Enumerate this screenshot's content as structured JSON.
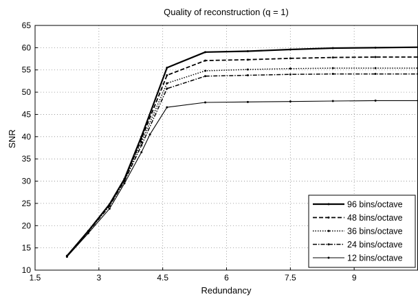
{
  "chart_data": {
    "type": "line",
    "title": "Quality of reconstruction (q = 1)",
    "xlabel": "Redundancy",
    "ylabel": "SNR",
    "xlim": [
      1.5,
      10.5
    ],
    "ylim": [
      10,
      65
    ],
    "xticks": [
      1.5,
      3,
      4.5,
      6,
      7.5,
      9
    ],
    "xtick_labels": [
      "1.5",
      "3",
      "4.5",
      "6",
      "7.5",
      "9"
    ],
    "yticks": [
      10,
      15,
      20,
      25,
      30,
      35,
      40,
      45,
      50,
      55,
      60,
      65
    ],
    "ytick_labels": [
      "10",
      "15",
      "20",
      "25",
      "30",
      "35",
      "40",
      "45",
      "50",
      "55",
      "60",
      "65"
    ],
    "grid": true,
    "legend_position": "bottom-right",
    "series": [
      {
        "name": "96 bins/octave",
        "style": "solid-bold",
        "x": [
          2.25,
          2.75,
          3.25,
          3.6,
          4.0,
          4.6,
          5.5,
          6.5,
          7.5,
          8.5,
          9.5,
          10.5
        ],
        "y": [
          13.2,
          18.8,
          24.8,
          30.5,
          40.0,
          55.5,
          59.0,
          59.2,
          59.6,
          59.9,
          60.0,
          60.1
        ]
      },
      {
        "name": "48 bins/octave",
        "style": "dashed",
        "x": [
          2.25,
          2.75,
          3.25,
          3.6,
          4.0,
          4.6,
          5.5,
          6.5,
          7.5,
          8.5,
          9.5,
          10.5
        ],
        "y": [
          13.2,
          18.8,
          24.8,
          30.4,
          39.5,
          53.8,
          57.1,
          57.3,
          57.6,
          57.8,
          57.9,
          57.9
        ]
      },
      {
        "name": "36 bins/octave",
        "style": "dotted",
        "x": [
          2.25,
          2.75,
          3.25,
          3.6,
          4.0,
          4.6,
          5.5,
          6.5,
          7.5,
          8.5,
          9.5,
          10.5
        ],
        "y": [
          13.2,
          18.7,
          24.6,
          30.2,
          38.8,
          52.0,
          54.8,
          55.1,
          55.3,
          55.4,
          55.4,
          55.4
        ]
      },
      {
        "name": "24 bins/octave",
        "style": "dashdot",
        "x": [
          2.25,
          2.75,
          3.25,
          3.6,
          4.0,
          4.6,
          5.5,
          6.5,
          7.5,
          8.5,
          9.5,
          10.5
        ],
        "y": [
          13.1,
          18.6,
          24.4,
          30.0,
          38.0,
          50.8,
          53.6,
          53.8,
          54.0,
          54.1,
          54.1,
          54.1
        ]
      },
      {
        "name": "12 bins/octave",
        "style": "solid",
        "x": [
          2.25,
          2.75,
          3.25,
          3.6,
          4.0,
          4.2,
          4.6,
          5.5,
          6.5,
          7.5,
          8.5,
          9.5,
          10.5
        ],
        "y": [
          13.0,
          18.3,
          23.8,
          29.5,
          36.5,
          40.5,
          46.6,
          47.7,
          47.8,
          47.9,
          48.0,
          48.1,
          48.1
        ]
      }
    ]
  }
}
